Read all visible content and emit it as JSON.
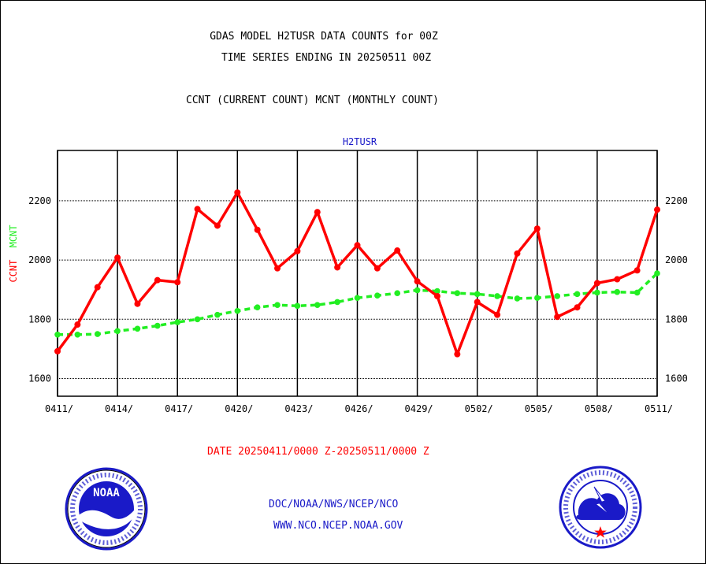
{
  "header": {
    "line1": "GDAS MODEL H2TUSR DATA COUNTS for 00Z",
    "line2": "TIME SERIES ENDING IN 20250511 00Z",
    "line3": "CCNT (CURRENT COUNT) MCNT (MONTHLY COUNT)"
  },
  "footer": {
    "date_range": "DATE 20250411/0000 Z-20250511/0000 Z",
    "org_path": "DOC/NOAA/NWS/NCEP/NCO",
    "website": "WWW.NCO.NCEP.NOAA.GOV"
  },
  "logos": {
    "left": {
      "icon": "noaa-logo",
      "text": "NOAA"
    },
    "right": {
      "icon": "national-weather-service-logo"
    }
  },
  "colors": {
    "ccnt": "#ff0000",
    "mcnt": "#22ee22",
    "plot_title": "#1a1ac8",
    "grid": "#000000"
  },
  "chart_data": {
    "type": "line",
    "title": "H2TUSR",
    "ylabel_left_parts": [
      "CCNT",
      "MCNT"
    ],
    "ylim": [
      1540,
      2370
    ],
    "yticks": [
      1600,
      1800,
      2000,
      2200
    ],
    "grid": true,
    "x_tick_labels": [
      "0411/",
      "0414/",
      "0417/",
      "0420/",
      "0423/",
      "0426/",
      "0429/",
      "0502/",
      "0505/",
      "0508/",
      "0511/"
    ],
    "x": [
      0,
      1,
      2,
      3,
      4,
      5,
      6,
      7,
      8,
      9,
      10,
      11,
      12,
      13,
      14,
      15,
      16,
      17,
      18,
      19,
      20,
      21,
      22,
      23,
      24,
      25,
      26,
      27,
      28,
      29,
      30
    ],
    "series": [
      {
        "name": "CCNT",
        "style": "solid",
        "values": [
          1692,
          1782,
          1908,
          2008,
          1852,
          1932,
          1925,
          2172,
          2116,
          2228,
          2102,
          1972,
          2030,
          2162,
          1975,
          2050,
          1972,
          2032,
          1928,
          1878,
          1682,
          1858,
          1815,
          2022,
          2106,
          1808,
          1840,
          1922,
          1935,
          1965,
          2170
        ]
      },
      {
        "name": "MCNT",
        "style": "dashed",
        "values": [
          1748,
          1748,
          1750,
          1760,
          1768,
          1778,
          1790,
          1800,
          1815,
          1828,
          1840,
          1848,
          1845,
          1848,
          1858,
          1872,
          1880,
          1888,
          1898,
          1895,
          1888,
          1885,
          1878,
          1870,
          1872,
          1878,
          1885,
          1890,
          1892,
          1890,
          1955
        ]
      }
    ]
  }
}
